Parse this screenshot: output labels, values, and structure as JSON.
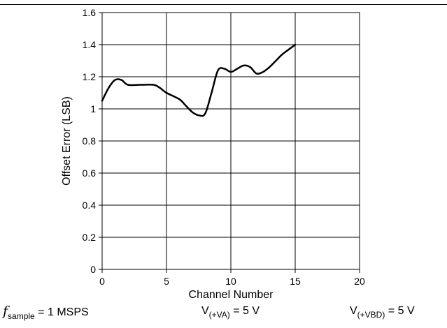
{
  "chart_data": {
    "type": "line",
    "title": "",
    "xlabel": "Channel Number",
    "ylabel": "Offset Error (LSB)",
    "xlim": [
      0,
      20
    ],
    "ylim": [
      0,
      1.6
    ],
    "xticks": [
      0,
      5,
      10,
      15,
      20
    ],
    "yticks": [
      0,
      0.2,
      0.4,
      0.6,
      0.8,
      1,
      1.2,
      1.4,
      1.6
    ],
    "xtick_labels": [
      "0",
      "5",
      "10",
      "15",
      "20"
    ],
    "ytick_labels": [
      "0",
      "0.2",
      "0.4",
      "0.6",
      "0.8",
      "1",
      "1.2",
      "1.4",
      "1.6"
    ],
    "grid": true,
    "line_color": "#000000",
    "series": [
      {
        "x": [
          0,
          0.5,
          1,
          1.5,
          2,
          3,
          4,
          4.5,
          5,
          6,
          6.5,
          7,
          7.5,
          8,
          8.5,
          9,
          9.5,
          10,
          10.5,
          11,
          11.5,
          12,
          12.5,
          13,
          13.5,
          14,
          14.5,
          15
        ],
        "y": [
          1.05,
          1.13,
          1.18,
          1.18,
          1.15,
          1.15,
          1.15,
          1.13,
          1.1,
          1.06,
          1.02,
          0.98,
          0.96,
          0.97,
          1.1,
          1.24,
          1.25,
          1.23,
          1.25,
          1.27,
          1.26,
          1.22,
          1.23,
          1.26,
          1.3,
          1.34,
          1.37,
          1.4
        ]
      }
    ]
  },
  "conditions": {
    "f_symbol": "f",
    "f_sub": "sample",
    "f_value": " = 1 MSPS",
    "va_main": "V",
    "va_sub": "(+VA)",
    "va_value": " = 5 V",
    "vbd_main": "V",
    "vbd_sub": "(+VBD)",
    "vbd_value": " = 5 V"
  }
}
